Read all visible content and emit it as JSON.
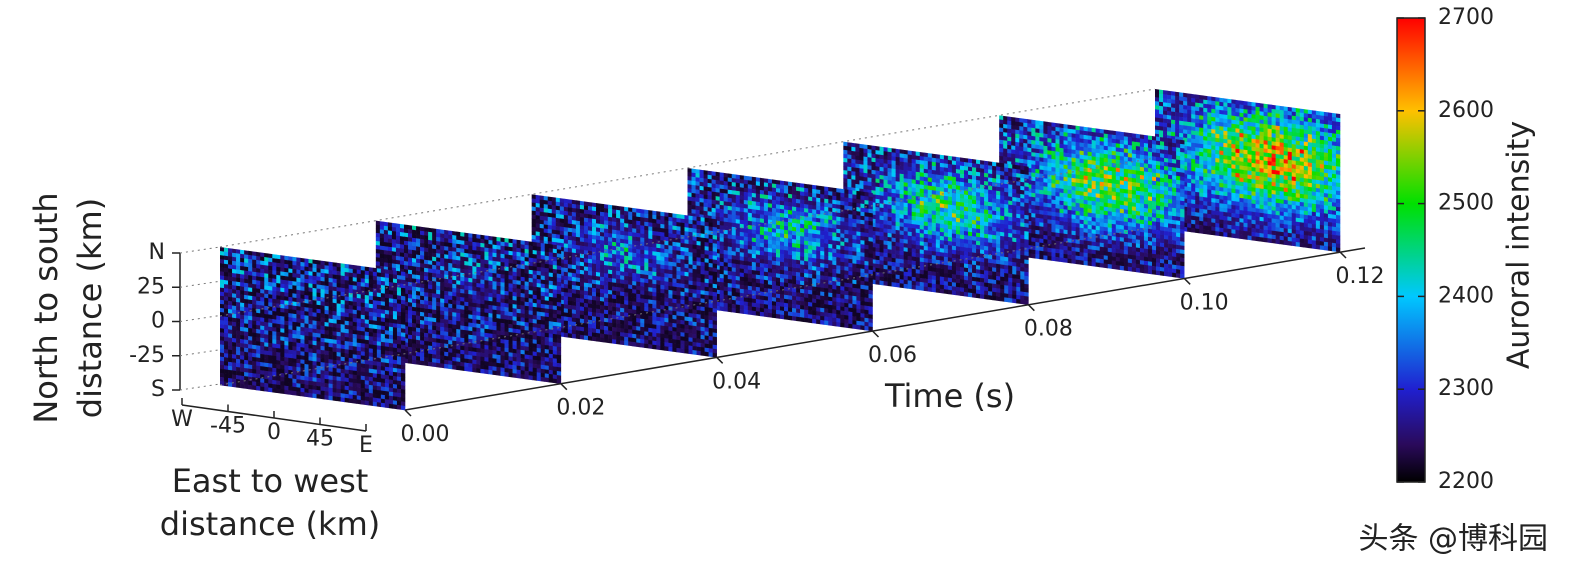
{
  "chart_data": {
    "type": "stacked-frames",
    "xlabel": "Time (s)",
    "xlim": [
      0,
      0.12
    ],
    "xticks": [
      {
        "value": 0,
        "label": "0.00"
      },
      {
        "value": 0.02,
        "label": "0.02"
      },
      {
        "value": 0.04,
        "label": "0.04"
      },
      {
        "value": 0.06,
        "label": "0.06"
      },
      {
        "value": 0.08,
        "label": "0.08"
      },
      {
        "value": 0.1,
        "label": "0.10"
      },
      {
        "value": 0.12,
        "label": "0.12"
      }
    ],
    "ew_label": [
      "East to west",
      "distance (km)"
    ],
    "ew_lim": [
      -90,
      90
    ],
    "ew_ticks": [
      {
        "value": -90,
        "label": "W"
      },
      -45,
      0,
      45,
      {
        "value": 90,
        "label": "E"
      }
    ],
    "ns_label": [
      "North to south",
      "distance (km)"
    ],
    "ns_lim": [
      -50,
      50
    ],
    "ns_ticks": [
      {
        "value": -50,
        "label": "S"
      },
      -25,
      0,
      25,
      {
        "value": 50,
        "label": "N"
      }
    ],
    "colorbar": {
      "label": "Auroral intensity",
      "lim": [
        2200,
        2700
      ],
      "ticks": [
        2200,
        2300,
        2400,
        2500,
        2600,
        2700
      ]
    },
    "watermark": "头条 @博科园"
  }
}
